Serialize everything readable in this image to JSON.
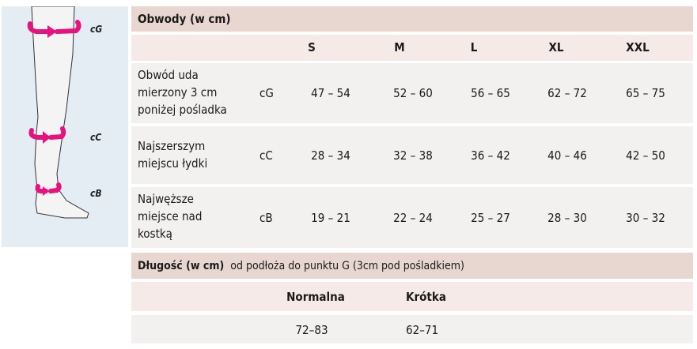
{
  "illustration": {
    "labels": [
      "cG",
      "cC",
      "cB"
    ],
    "arrow_color": "#e8127c"
  },
  "circumference": {
    "title": "Obwody (w cm)",
    "sizes": [
      "S",
      "M",
      "L",
      "XL",
      "XXL"
    ],
    "rows": [
      {
        "label": [
          "Obwód uda",
          "mierzony 3 cm",
          "poniżej pośladka"
        ],
        "code": "cG",
        "values": [
          "47 – 54",
          "52 – 60",
          "56 – 65",
          "62 – 72",
          "65 – 75"
        ]
      },
      {
        "label": [
          "Najszerszym",
          "miejscu łydki"
        ],
        "code": "cC",
        "values": [
          "28 – 34",
          "32 – 38",
          "36 – 42",
          "40 – 46",
          "42 – 50"
        ]
      },
      {
        "label": [
          "Najwęższe",
          "miejsce nad",
          "kostką"
        ],
        "code": "cB",
        "values": [
          "19 – 21",
          "22 – 24",
          "25 – 27",
          "28 – 30",
          "30 – 32"
        ]
      }
    ]
  },
  "length": {
    "title": "Długość (w cm)",
    "subtitle": "od podłoża do punktu G (3cm pod pośladkiem)",
    "columns": [
      "Normalna",
      "Krótka"
    ],
    "values": [
      "72–83",
      "62–71"
    ]
  },
  "colors": {
    "header": "#e8d7d1",
    "subheader": "#f6eae9",
    "row": "#f2f1ef",
    "panel": "#e3edf3"
  }
}
